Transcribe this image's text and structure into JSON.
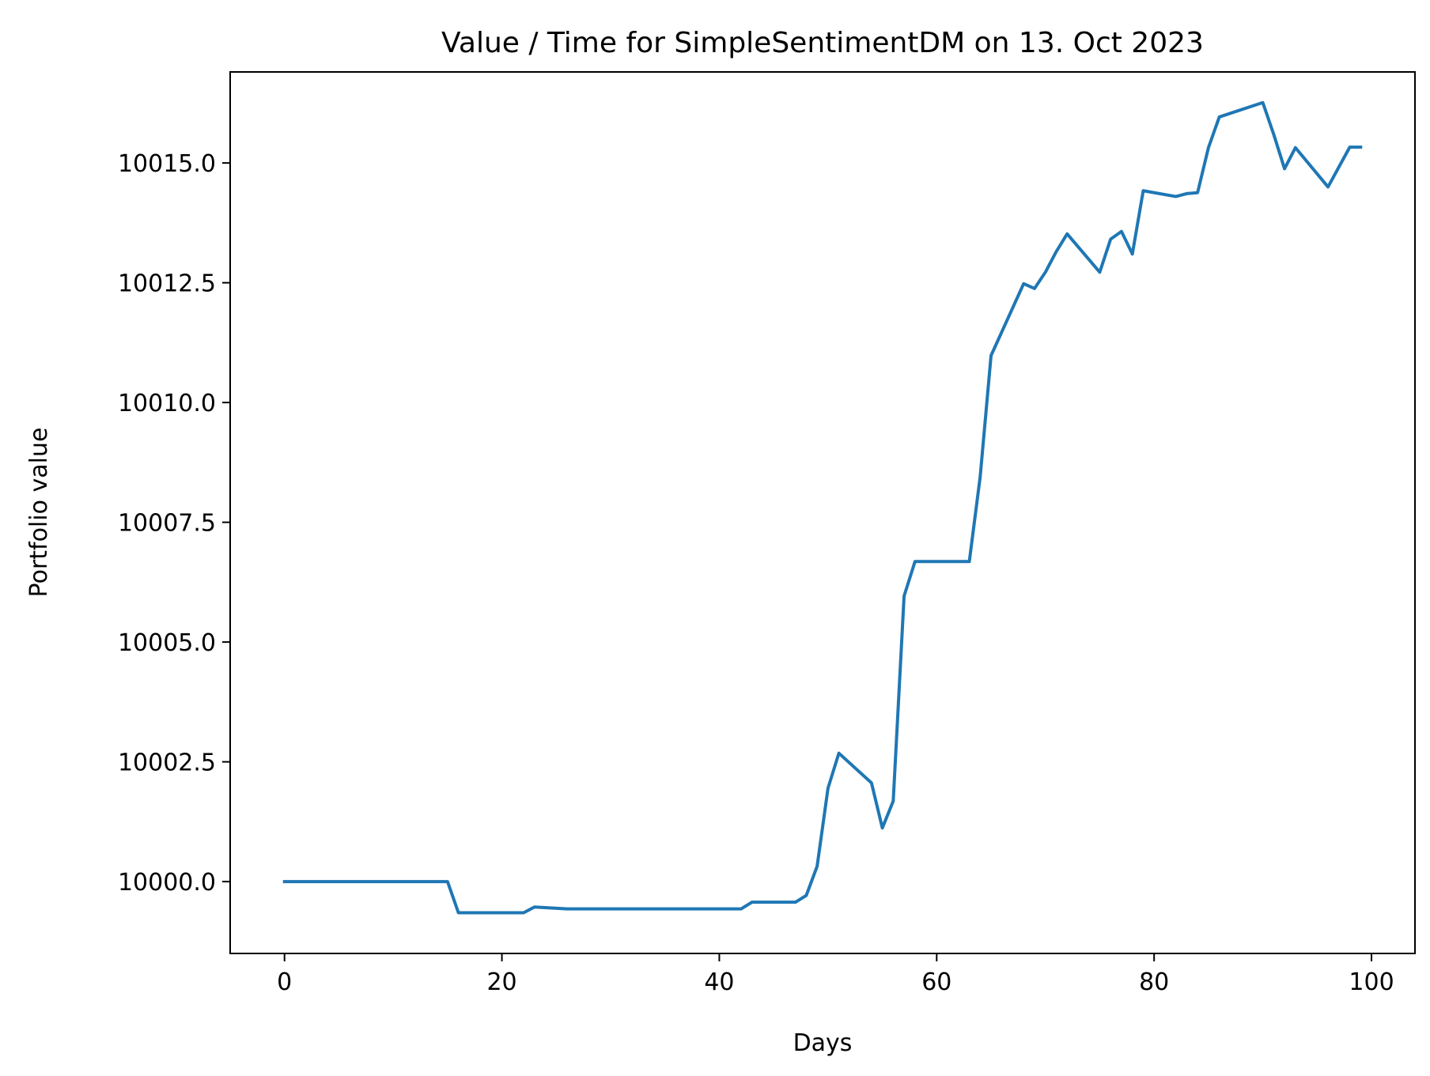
{
  "chart_data": {
    "type": "line",
    "title": "Value / Time for SimpleSentimentDM on 13. Oct 2023",
    "xlabel": "Days",
    "ylabel": "Portfolio value",
    "xlim": [
      -5,
      104
    ],
    "ylim": [
      9998.5,
      10016.9
    ],
    "x_ticks": [
      0,
      20,
      40,
      60,
      80,
      100
    ],
    "x_tick_labels": [
      "0",
      "20",
      "40",
      "60",
      "80",
      "100"
    ],
    "y_ticks": [
      10000.0,
      10002.5,
      10005.0,
      10007.5,
      10010.0,
      10012.5,
      10015.0
    ],
    "y_tick_labels": [
      "10000.0",
      "10002.5",
      "10005.0",
      "10007.5",
      "10010.0",
      "10012.5",
      "10015.0"
    ],
    "grid": false,
    "line_color": "#1f77b4",
    "series": [
      {
        "x": [
          0,
          15,
          16,
          22,
          23,
          26,
          42,
          43,
          47,
          48,
          49,
          50,
          51,
          54,
          55,
          56,
          57,
          58,
          63,
          64,
          65,
          68,
          69,
          70,
          71,
          72,
          75,
          76,
          77,
          78,
          79,
          82,
          83,
          84,
          85,
          86,
          90,
          91,
          92,
          93,
          96,
          98,
          99
        ],
        "values": [
          10000.0,
          10000.0,
          9999.35,
          9999.35,
          9999.47,
          9999.43,
          9999.43,
          9999.57,
          9999.57,
          9999.71,
          10000.32,
          10001.95,
          10002.68,
          10002.06,
          10001.12,
          10001.68,
          10005.96,
          10006.68,
          10006.68,
          10008.45,
          10010.98,
          10012.48,
          10012.38,
          10012.72,
          10013.15,
          10013.52,
          10012.72,
          10013.41,
          10013.57,
          10013.1,
          10014.42,
          10014.3,
          10014.36,
          10014.38,
          10015.32,
          10015.96,
          10016.26,
          10015.6,
          10014.88,
          10015.32,
          10014.5,
          10015.33,
          10015.33
        ]
      }
    ]
  }
}
